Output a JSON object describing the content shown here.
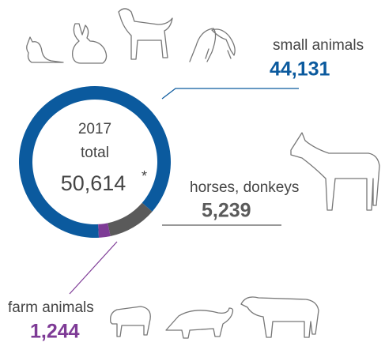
{
  "chart_data": {
    "type": "pie",
    "categories": [
      "small animals",
      "horses, donkeys",
      "farm animals"
    ],
    "values": [
      44131,
      5239,
      1244
    ],
    "value_labels": [
      "44,131",
      "5,239",
      "1,244"
    ],
    "colors": [
      "#0b5a9e",
      "#5a5a5a",
      "#7e3b96"
    ],
    "center": {
      "year": "2017",
      "text": "total",
      "total": {
        "value": 50614,
        "label": "50,614"
      },
      "footnote": "*"
    }
  }
}
